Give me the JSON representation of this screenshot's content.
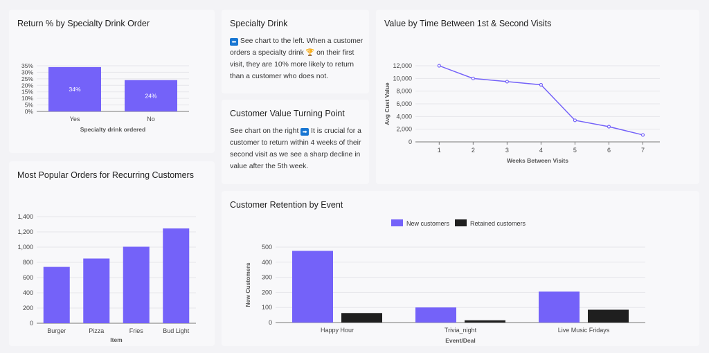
{
  "cards": {
    "specialty": {
      "title": "Specialty Drink",
      "arrow_icon": "left-arrow-icon",
      "arrow_glyph": "⬅",
      "text_a": "See chart to the left. When a customer orders a specialty drink",
      "trophy_icon": "trophy-icon",
      "trophy_glyph": "🏆",
      "text_b": "on their first visit, they are 10% more likely to return than a customer who does not."
    },
    "turning": {
      "title": "Customer Value Turning Point",
      "text_a": "See chart on the right",
      "arrow_icon": "right-arrow-icon",
      "arrow_glyph": "➡",
      "text_b": "It is crucial for a customer to return within 4 weeks of their second visit as we see a sharp decline in value after the 5th week."
    }
  },
  "colors": {
    "purple": "#7462f9",
    "black": "#1f1f1f",
    "grid": "#e6e6ea",
    "axis": "#555555"
  },
  "chart_data": [
    {
      "id": "return",
      "type": "bar",
      "title": "Return % by Specialty Drink Order",
      "categories": [
        "Yes",
        "No"
      ],
      "values": [
        34,
        24
      ],
      "data_labels": [
        "34%",
        "24%"
      ],
      "xlabel": "Specialty drink ordered",
      "ylabel": "",
      "ylim": [
        0,
        35
      ],
      "yticks": [
        "0%",
        "5%",
        "10%",
        "15%",
        "20%",
        "25%",
        "30%",
        "35%"
      ],
      "grid": true
    },
    {
      "id": "popular",
      "type": "bar",
      "title": "Most Popular Orders for Recurring Customers",
      "categories": [
        "Burger",
        "Pizza",
        "Fries",
        "Bud Light"
      ],
      "values": [
        740,
        850,
        1005,
        1245
      ],
      "xlabel": "Item",
      "ylabel": "",
      "ylim": [
        0,
        1400
      ],
      "yticks": [
        "0",
        "200",
        "400",
        "600",
        "800",
        "1,000",
        "1,200",
        "1,400"
      ],
      "grid": true
    },
    {
      "id": "value",
      "type": "line",
      "title": "Value by Time Between 1st & Second Visits",
      "x": [
        1,
        2,
        3,
        4,
        5,
        6,
        7
      ],
      "values": [
        12000,
        10000,
        9500,
        9000,
        3400,
        2400,
        1100
      ],
      "xlabel": "Weeks Between Visits",
      "ylabel": "Avg Cust Value",
      "ylim": [
        0,
        12000
      ],
      "yticks": [
        "0",
        "2,000",
        "4,000",
        "6,000",
        "8,000",
        "10,000",
        "12,000"
      ],
      "grid": true
    },
    {
      "id": "retention",
      "type": "bar",
      "title": "Customer Retention by Event",
      "categories": [
        "Happy Hour",
        "Trivia_night",
        "Live Music Fridays"
      ],
      "series": [
        {
          "name": "New customers",
          "values": [
            475,
            100,
            205
          ]
        },
        {
          "name": "Retained customers",
          "values": [
            63,
            15,
            85
          ]
        }
      ],
      "xlabel": "Event/Deal",
      "ylabel": "New Customers",
      "ylim": [
        0,
        500
      ],
      "yticks": [
        "0",
        "100",
        "200",
        "300",
        "400",
        "500"
      ],
      "legend": "top-center",
      "grid": true
    }
  ]
}
